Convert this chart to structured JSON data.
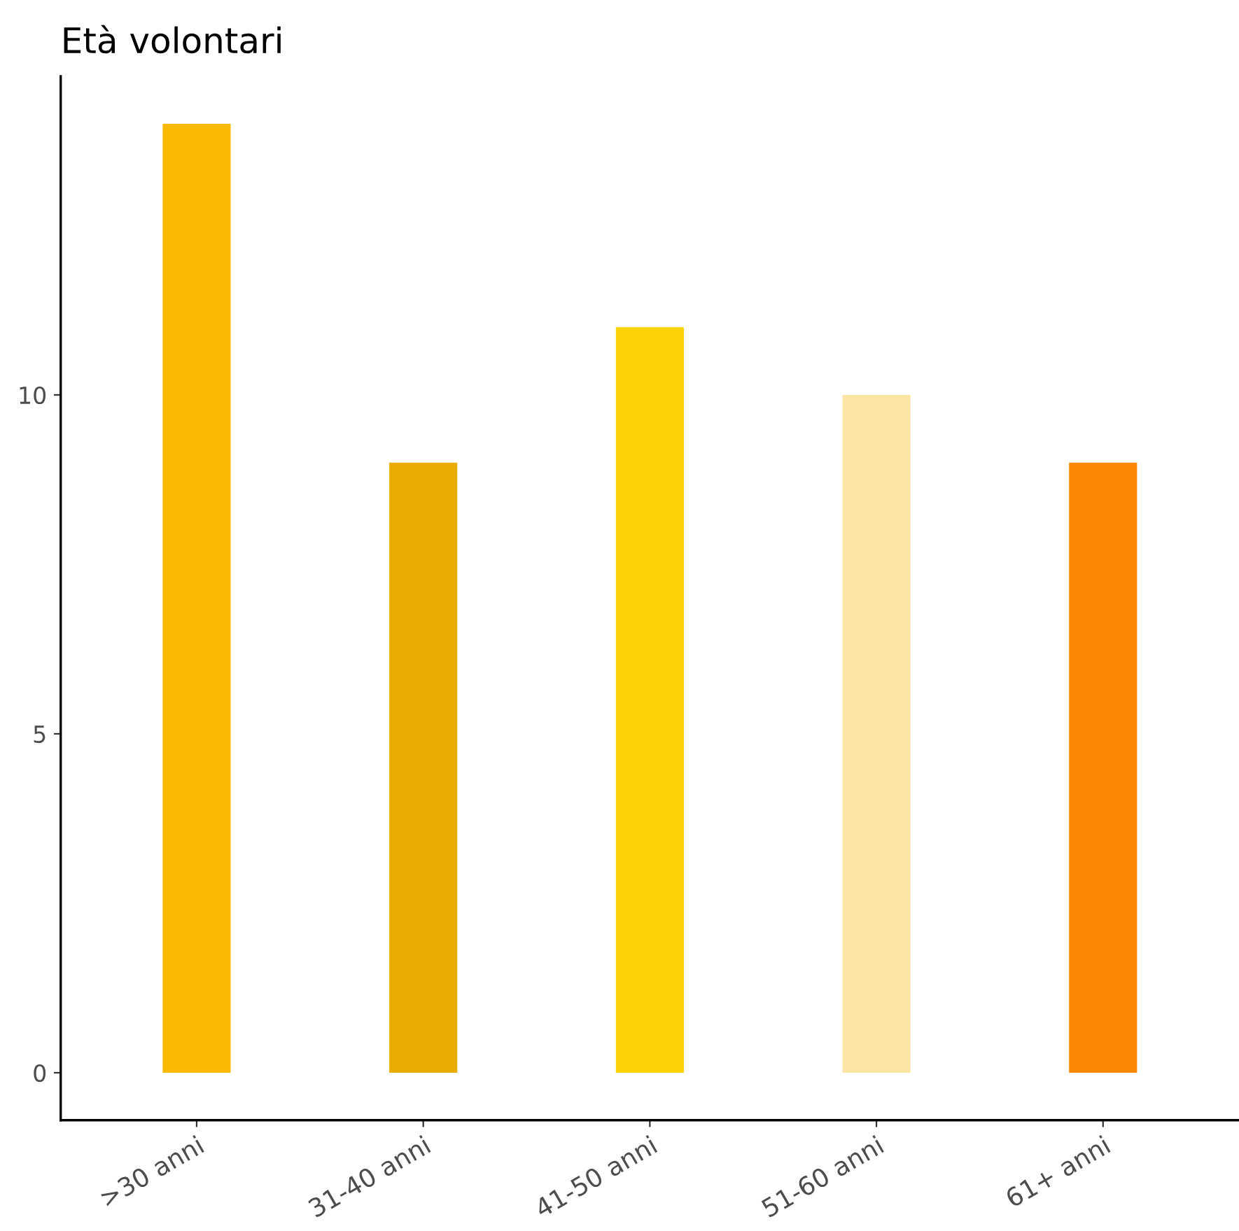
{
  "chart_data": {
    "type": "bar",
    "title": "Età volontari",
    "categories": [
      ">30 anni",
      "31-40 anni",
      "41-50 anni",
      "51-60 anni",
      "61+ anni"
    ],
    "values": [
      14,
      9,
      11,
      10,
      9
    ],
    "colors": [
      "#fbb805",
      "#e8ac05",
      "#fbd305",
      "#fde5a5",
      "#fb8805"
    ],
    "ylim": [
      -0.7,
      14.7
    ],
    "yticks": [
      0,
      5,
      10
    ],
    "grid": false
  }
}
